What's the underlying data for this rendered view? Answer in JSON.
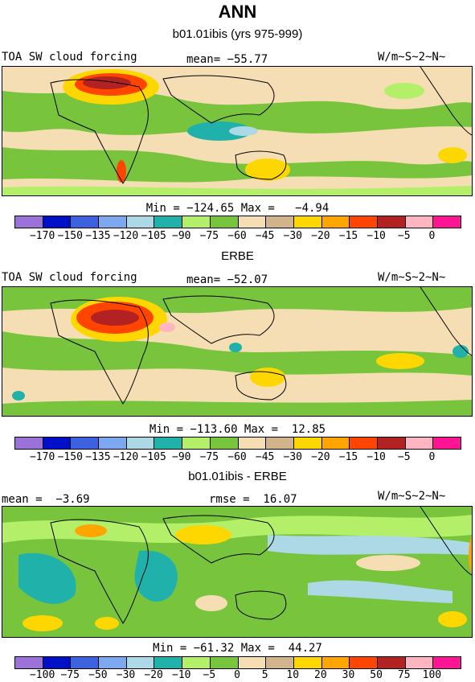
{
  "title": "ANN",
  "panels": [
    {
      "heading": "b01.01ibis (yrs 975-999)",
      "left_label": "TOA SW cloud forcing",
      "mid_label": "mean= −55.77",
      "right_label": "W/m~S~2~N~",
      "minmax": "Min = −124.65 Max =   −4.94",
      "colorbar": {
        "colors": [
          "#9b72d9",
          "#0010c8",
          "#3c62e0",
          "#7da7ee",
          "#add8e6",
          "#20b2aa",
          "#b4ef6a",
          "#78c43c",
          "#f5deb3",
          "#d2b48c",
          "#ffd700",
          "#ffa500",
          "#ff4500",
          "#b22222",
          "#ffb6c1",
          "#ff1493"
        ],
        "ticks": [
          "−170",
          "−150",
          "−135",
          "−120",
          "−105",
          "−90",
          "−75",
          "−60",
          "−45",
          "−30",
          "−20",
          "−15",
          "−10",
          "−5",
          "0"
        ]
      }
    },
    {
      "heading": "ERBE",
      "left_label": "TOA SW cloud forcing",
      "mid_label": "mean= −52.07",
      "right_label": "W/m~S~2~N~",
      "minmax": "Min = −113.60 Max =  12.85",
      "colorbar": {
        "colors": [
          "#9b72d9",
          "#0010c8",
          "#3c62e0",
          "#7da7ee",
          "#add8e6",
          "#20b2aa",
          "#b4ef6a",
          "#78c43c",
          "#f5deb3",
          "#d2b48c",
          "#ffd700",
          "#ffa500",
          "#ff4500",
          "#b22222",
          "#ffb6c1",
          "#ff1493"
        ],
        "ticks": [
          "−170",
          "−150",
          "−135",
          "−120",
          "−105",
          "−90",
          "−75",
          "−60",
          "−45",
          "−30",
          "−20",
          "−15",
          "−10",
          "−5",
          "0"
        ]
      }
    },
    {
      "heading": "b01.01ibis - ERBE",
      "left_label": "mean =  −3.69",
      "mid_label": "rmse =  16.07",
      "right_label": "W/m~S~2~N~",
      "minmax": "Min = −61.32 Max =  44.27",
      "colorbar": {
        "colors": [
          "#9b72d9",
          "#0010c8",
          "#3c62e0",
          "#7da7ee",
          "#add8e6",
          "#20b2aa",
          "#b4ef6a",
          "#78c43c",
          "#f5deb3",
          "#d2b48c",
          "#ffd700",
          "#ffa500",
          "#ff4500",
          "#b22222",
          "#ffb6c1",
          "#ff1493"
        ],
        "ticks": [
          "−100",
          "−75",
          "−50",
          "−30",
          "−20",
          "−10",
          "−5",
          "0",
          "5",
          "10",
          "20",
          "30",
          "50",
          "75",
          "100"
        ]
      }
    }
  ]
}
